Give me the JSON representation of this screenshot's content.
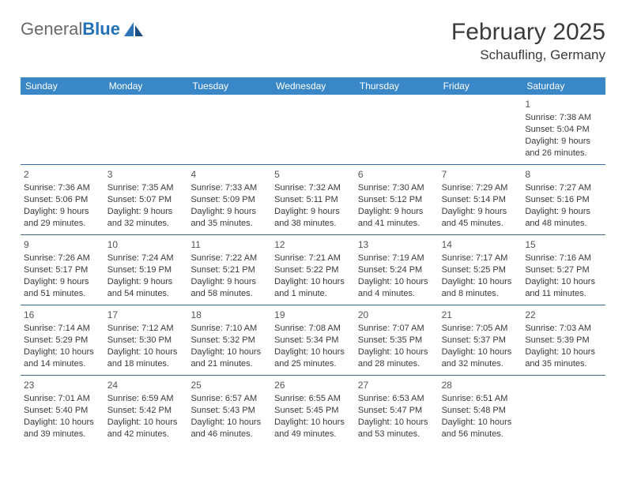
{
  "logo": {
    "general": "General",
    "blue": "Blue"
  },
  "title": "February 2025",
  "location": "Schaufling, Germany",
  "colors": {
    "header_bg": "#3a87c7",
    "header_text": "#ffffff",
    "week_border": "#3a6a98",
    "text": "#3a3a3a",
    "logo_gray": "#6a6a6a",
    "logo_blue": "#2471b8",
    "background": "#ffffff"
  },
  "day_headers": [
    "Sunday",
    "Monday",
    "Tuesday",
    "Wednesday",
    "Thursday",
    "Friday",
    "Saturday"
  ],
  "weeks": [
    [
      null,
      null,
      null,
      null,
      null,
      null,
      {
        "n": "1",
        "sr": "Sunrise: 7:38 AM",
        "ss": "Sunset: 5:04 PM",
        "dl": "Daylight: 9 hours and 26 minutes."
      }
    ],
    [
      {
        "n": "2",
        "sr": "Sunrise: 7:36 AM",
        "ss": "Sunset: 5:06 PM",
        "dl": "Daylight: 9 hours and 29 minutes."
      },
      {
        "n": "3",
        "sr": "Sunrise: 7:35 AM",
        "ss": "Sunset: 5:07 PM",
        "dl": "Daylight: 9 hours and 32 minutes."
      },
      {
        "n": "4",
        "sr": "Sunrise: 7:33 AM",
        "ss": "Sunset: 5:09 PM",
        "dl": "Daylight: 9 hours and 35 minutes."
      },
      {
        "n": "5",
        "sr": "Sunrise: 7:32 AM",
        "ss": "Sunset: 5:11 PM",
        "dl": "Daylight: 9 hours and 38 minutes."
      },
      {
        "n": "6",
        "sr": "Sunrise: 7:30 AM",
        "ss": "Sunset: 5:12 PM",
        "dl": "Daylight: 9 hours and 41 minutes."
      },
      {
        "n": "7",
        "sr": "Sunrise: 7:29 AM",
        "ss": "Sunset: 5:14 PM",
        "dl": "Daylight: 9 hours and 45 minutes."
      },
      {
        "n": "8",
        "sr": "Sunrise: 7:27 AM",
        "ss": "Sunset: 5:16 PM",
        "dl": "Daylight: 9 hours and 48 minutes."
      }
    ],
    [
      {
        "n": "9",
        "sr": "Sunrise: 7:26 AM",
        "ss": "Sunset: 5:17 PM",
        "dl": "Daylight: 9 hours and 51 minutes."
      },
      {
        "n": "10",
        "sr": "Sunrise: 7:24 AM",
        "ss": "Sunset: 5:19 PM",
        "dl": "Daylight: 9 hours and 54 minutes."
      },
      {
        "n": "11",
        "sr": "Sunrise: 7:22 AM",
        "ss": "Sunset: 5:21 PM",
        "dl": "Daylight: 9 hours and 58 minutes."
      },
      {
        "n": "12",
        "sr": "Sunrise: 7:21 AM",
        "ss": "Sunset: 5:22 PM",
        "dl": "Daylight: 10 hours and 1 minute."
      },
      {
        "n": "13",
        "sr": "Sunrise: 7:19 AM",
        "ss": "Sunset: 5:24 PM",
        "dl": "Daylight: 10 hours and 4 minutes."
      },
      {
        "n": "14",
        "sr": "Sunrise: 7:17 AM",
        "ss": "Sunset: 5:25 PM",
        "dl": "Daylight: 10 hours and 8 minutes."
      },
      {
        "n": "15",
        "sr": "Sunrise: 7:16 AM",
        "ss": "Sunset: 5:27 PM",
        "dl": "Daylight: 10 hours and 11 minutes."
      }
    ],
    [
      {
        "n": "16",
        "sr": "Sunrise: 7:14 AM",
        "ss": "Sunset: 5:29 PM",
        "dl": "Daylight: 10 hours and 14 minutes."
      },
      {
        "n": "17",
        "sr": "Sunrise: 7:12 AM",
        "ss": "Sunset: 5:30 PM",
        "dl": "Daylight: 10 hours and 18 minutes."
      },
      {
        "n": "18",
        "sr": "Sunrise: 7:10 AM",
        "ss": "Sunset: 5:32 PM",
        "dl": "Daylight: 10 hours and 21 minutes."
      },
      {
        "n": "19",
        "sr": "Sunrise: 7:08 AM",
        "ss": "Sunset: 5:34 PM",
        "dl": "Daylight: 10 hours and 25 minutes."
      },
      {
        "n": "20",
        "sr": "Sunrise: 7:07 AM",
        "ss": "Sunset: 5:35 PM",
        "dl": "Daylight: 10 hours and 28 minutes."
      },
      {
        "n": "21",
        "sr": "Sunrise: 7:05 AM",
        "ss": "Sunset: 5:37 PM",
        "dl": "Daylight: 10 hours and 32 minutes."
      },
      {
        "n": "22",
        "sr": "Sunrise: 7:03 AM",
        "ss": "Sunset: 5:39 PM",
        "dl": "Daylight: 10 hours and 35 minutes."
      }
    ],
    [
      {
        "n": "23",
        "sr": "Sunrise: 7:01 AM",
        "ss": "Sunset: 5:40 PM",
        "dl": "Daylight: 10 hours and 39 minutes."
      },
      {
        "n": "24",
        "sr": "Sunrise: 6:59 AM",
        "ss": "Sunset: 5:42 PM",
        "dl": "Daylight: 10 hours and 42 minutes."
      },
      {
        "n": "25",
        "sr": "Sunrise: 6:57 AM",
        "ss": "Sunset: 5:43 PM",
        "dl": "Daylight: 10 hours and 46 minutes."
      },
      {
        "n": "26",
        "sr": "Sunrise: 6:55 AM",
        "ss": "Sunset: 5:45 PM",
        "dl": "Daylight: 10 hours and 49 minutes."
      },
      {
        "n": "27",
        "sr": "Sunrise: 6:53 AM",
        "ss": "Sunset: 5:47 PM",
        "dl": "Daylight: 10 hours and 53 minutes."
      },
      {
        "n": "28",
        "sr": "Sunrise: 6:51 AM",
        "ss": "Sunset: 5:48 PM",
        "dl": "Daylight: 10 hours and 56 minutes."
      },
      null
    ]
  ]
}
